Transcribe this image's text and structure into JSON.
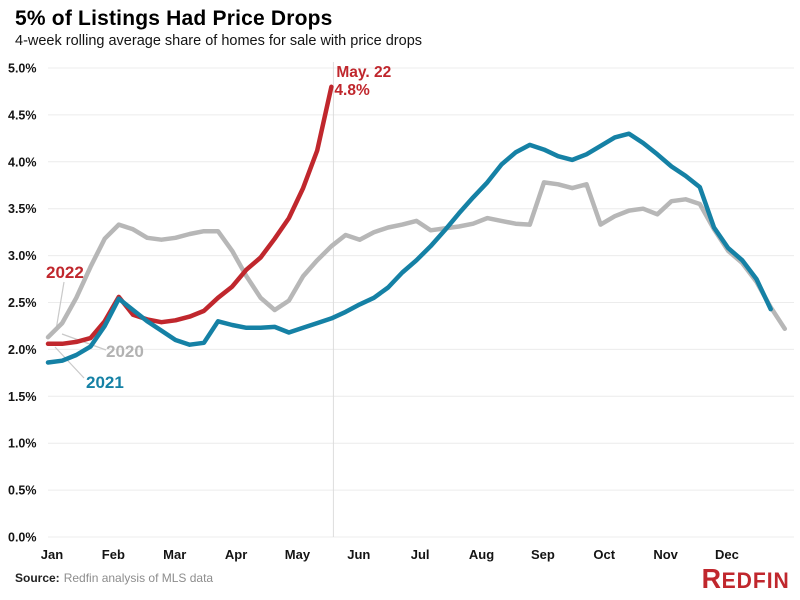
{
  "chart_data": {
    "type": "line",
    "title": "5% of Listings Had Price Drops",
    "subtitle": "4-week rolling average share of homes for sale with price drops",
    "x_axis": {
      "unit": "weeks from Jan 1",
      "months": [
        "Jan",
        "Feb",
        "Mar",
        "Apr",
        "May",
        "Jun",
        "Jul",
        "Aug",
        "Sep",
        "Oct",
        "Nov",
        "Dec"
      ]
    },
    "y_axis": {
      "unit": "%",
      "range": [
        0,
        5
      ],
      "grid": true,
      "ticks": [
        {
          "label": "5.0%",
          "value": 5.0
        },
        {
          "label": "4.5%",
          "value": 4.5
        },
        {
          "label": "4.0%",
          "value": 4.0
        },
        {
          "label": "3.5%",
          "value": 3.5
        },
        {
          "label": "3.0%",
          "value": 3.0
        },
        {
          "label": "2.5%",
          "value": 2.5
        },
        {
          "label": "2.0%",
          "value": 2.0
        },
        {
          "label": "1.5%",
          "value": 1.5
        },
        {
          "label": "1.0%",
          "value": 1.0
        },
        {
          "label": "0.5%",
          "value": 0.5
        },
        {
          "label": "0.0%",
          "value": 0.0
        }
      ]
    },
    "legend": "inline-series-labels",
    "series": [
      {
        "name": "2020",
        "color": "#b7b7b7",
        "label_color": "#b2b2b2",
        "values": [
          2.13,
          2.28,
          2.55,
          2.88,
          3.18,
          3.33,
          3.28,
          3.19,
          3.17,
          3.19,
          3.23,
          3.26,
          3.26,
          3.05,
          2.78,
          2.55,
          2.42,
          2.52,
          2.78,
          2.95,
          3.1,
          3.22,
          3.17,
          3.25,
          3.3,
          3.33,
          3.37,
          3.27,
          3.29,
          3.31,
          3.34,
          3.4,
          3.37,
          3.34,
          3.33,
          3.78,
          3.76,
          3.72,
          3.76,
          3.33,
          3.42,
          3.48,
          3.5,
          3.44,
          3.58,
          3.6,
          3.55,
          3.28,
          3.05,
          2.92,
          2.72,
          2.45,
          2.22
        ]
      },
      {
        "name": "2022",
        "color": "#c0272d",
        "label_color": "#c0272d",
        "values": [
          2.06,
          2.06,
          2.08,
          2.12,
          2.3,
          2.56,
          2.37,
          2.32,
          2.29,
          2.31,
          2.35,
          2.41,
          2.55,
          2.67,
          2.85,
          2.98,
          3.18,
          3.4,
          3.72,
          4.12,
          4.8
        ]
      },
      {
        "name": "2021",
        "color": "#1581a5",
        "label_color": "#1581a5",
        "values": [
          1.86,
          1.88,
          1.94,
          2.03,
          2.25,
          2.54,
          2.42,
          2.3,
          2.2,
          2.1,
          2.05,
          2.07,
          2.3,
          2.26,
          2.23,
          2.23,
          2.24,
          2.18,
          2.23,
          2.28,
          2.33,
          2.4,
          2.48,
          2.55,
          2.66,
          2.82,
          2.95,
          3.1,
          3.27,
          3.45,
          3.62,
          3.78,
          3.97,
          4.1,
          4.18,
          4.13,
          4.06,
          4.02,
          4.08,
          4.17,
          4.26,
          4.3,
          4.2,
          4.08,
          3.95,
          3.85,
          3.73,
          3.3,
          3.08,
          2.95,
          2.75,
          2.43
        ]
      }
    ],
    "annotation": {
      "date": "May. 22",
      "value": "4.8%",
      "week": 20
    }
  },
  "source": {
    "prefix": "Source:",
    "text": "Redfin analysis of MLS data"
  },
  "logo": {
    "first": "R",
    "rest": "EDFIN"
  },
  "colors": {
    "red": "#c0272d",
    "teal": "#1581a5",
    "gray": "#b7b7b7",
    "grid": "#ececec",
    "vline": "#dcdcdc",
    "connector": "#c9c9c9",
    "text_dark": "#141414",
    "text_muted": "#8d8d8d"
  }
}
